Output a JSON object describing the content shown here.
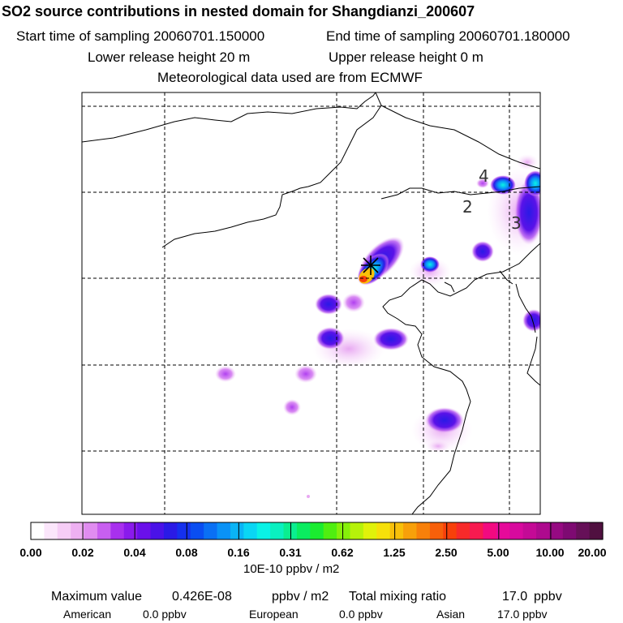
{
  "header": {
    "title": "SO2 source contributions in nested domain for Shangdianzi_200607",
    "start_label": "Start time of sampling 20060701.150000",
    "end_label": "End time of sampling 20060701.180000",
    "lower_label": "Lower release height   20 m",
    "upper_label": "Upper release height    0 m",
    "met_label": "Meteorological data used are from ECMWF"
  },
  "map": {
    "contour_labels": [
      "4",
      "2",
      "3"
    ],
    "site_marker": "Shangdianzi"
  },
  "legend": {
    "ticks": [
      "0.00",
      "0.02",
      "0.04",
      "0.08",
      "0.16",
      "0.31",
      "0.62",
      "1.25",
      "2.50",
      "5.00",
      "10.00",
      "20.00"
    ],
    "unit": "10E-10 ppbv / m2",
    "colors": [
      "#ffffff",
      "#fbe6fb",
      "#f6cdf6",
      "#eeb0f2",
      "#e08cf0",
      "#c85ff0",
      "#a830ee",
      "#8a1aec",
      "#6a10ea",
      "#4a12e8",
      "#2a1ae6",
      "#1530ee",
      "#0a4ef2",
      "#0a70f4",
      "#0a92f6",
      "#0ab4f6",
      "#0ad6f4",
      "#0af2e6",
      "#0af0c0",
      "#0aee90",
      "#0aec60",
      "#1aec30",
      "#50ee10",
      "#86f00a",
      "#b6f20a",
      "#e0f20a",
      "#f6e00a",
      "#f8c00a",
      "#f8a00a",
      "#f8800a",
      "#f8600a",
      "#f8400a",
      "#f82a2a",
      "#f81a50",
      "#f20a80",
      "#e60a9a",
      "#d80a9e",
      "#c40a96",
      "#ae0a8e",
      "#960a82",
      "#7e0a72",
      "#661058",
      "#501040"
    ]
  },
  "summary": {
    "max_label": "Maximum value",
    "max_value": "0.426E-08",
    "max_unit": "ppbv / m2",
    "total_label": "Total mixing ratio",
    "total_value": "17.0",
    "total_unit": "ppbv",
    "american_label": "American",
    "american_value": "0.0 ppbv",
    "european_label": "European",
    "european_value": "0.0 ppbv",
    "asian_label": "Asian",
    "asian_value": "17.0 ppbv"
  }
}
